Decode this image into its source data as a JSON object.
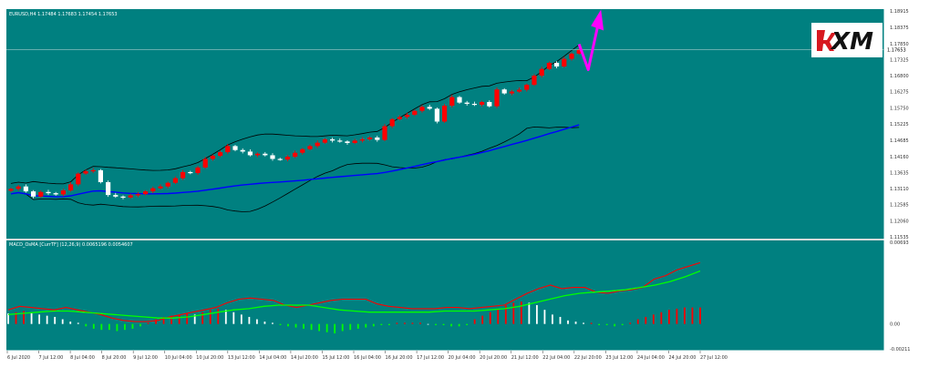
{
  "main_header": "EURUSD,H4  1.17484 1.17683 1.17454 1.17653",
  "macd_header": "MACD_OsMA [CurrTF] (12,26,9) 0.0065196 0.0054607",
  "logo": {
    "text": "XM",
    "brand_color": "#d71920"
  },
  "colors": {
    "background": "#008080",
    "bull_candle": "#ff0000",
    "bear_candle": "#ffffff",
    "bands": "#000000",
    "moving_average": "#0000ff",
    "forecast_arrow": "#ff00ff",
    "macd_line": "#ff0000",
    "signal_line": "#00ff00",
    "hist_rising": "#ff0000",
    "hist_falling": "#ffffff",
    "hist_negative": "#00ff00"
  },
  "current_price": "1.17653",
  "chart_data": [
    {
      "type": "candlestick",
      "symbol": "EURUSD",
      "timeframe": "H4",
      "ylim": [
        1.11535,
        1.18915
      ],
      "y_ticks": [
        "1.18915",
        "1.18375",
        "1.17850",
        "1.17325",
        "1.16800",
        "1.16275",
        "1.15750",
        "1.15225",
        "1.14685",
        "1.14160",
        "1.13635",
        "1.13110",
        "1.12585",
        "1.12060",
        "1.11535"
      ],
      "x_ticks": [
        "6 Jul 2020",
        "7 Jul 12:00",
        "8 Jul 04:00",
        "8 Jul 20:00",
        "9 Jul 12:00",
        "10 Jul 04:00",
        "10 Jul 20:00",
        "13 Jul 12:00",
        "14 Jul 04:00",
        "14 Jul 20:00",
        "15 Jul 12:00",
        "16 Jul 04:00",
        "16 Jul 20:00",
        "17 Jul 12:00",
        "20 Jul 04:00",
        "20 Jul 20:00",
        "21 Jul 12:00",
        "22 Jul 04:00",
        "22 Jul 20:00",
        "23 Jul 12:00",
        "24 Jul 04:00",
        "24 Jul 20:00",
        "27 Jul 12:00"
      ],
      "close": [
        1.131,
        1.1318,
        1.1302,
        1.1285,
        1.13,
        1.1296,
        1.1292,
        1.1305,
        1.1325,
        1.136,
        1.1368,
        1.1371,
        1.1332,
        1.129,
        1.1285,
        1.1282,
        1.1289,
        1.1293,
        1.1302,
        1.1312,
        1.1318,
        1.133,
        1.1345,
        1.1365,
        1.1362,
        1.138,
        1.1408,
        1.1418,
        1.143,
        1.145,
        1.1437,
        1.1432,
        1.142,
        1.1425,
        1.142,
        1.1408,
        1.1406,
        1.1415,
        1.1428,
        1.144,
        1.145,
        1.1461,
        1.1472,
        1.1468,
        1.1465,
        1.146,
        1.1468,
        1.1472,
        1.1478,
        1.147,
        1.1515,
        1.1538,
        1.1545,
        1.1552,
        1.1565,
        1.1578,
        1.1572,
        1.153,
        1.1582,
        1.161,
        1.1592,
        1.1588,
        1.1585,
        1.1594,
        1.158,
        1.1635,
        1.1622,
        1.1628,
        1.1634,
        1.165,
        1.168,
        1.1702,
        1.1722,
        1.171,
        1.1735,
        1.1752,
        1.1765
      ],
      "overlays": [
        "upper band",
        "lower band",
        "moving average"
      ],
      "forecast": "upward arrow"
    },
    {
      "type": "bar",
      "name": "MACD_OsMA",
      "ylim": [
        -0.00211,
        0.00693
      ],
      "y_ticks": [
        "0.00693",
        "0.00",
        "-0.00211"
      ],
      "histogram": [
        0.0009,
        0.001,
        0.0011,
        0.0009,
        0.0008,
        0.0007,
        0.0006,
        0.0004,
        0.0002,
        0.0001,
        -0.0002,
        -0.0004,
        -0.0005,
        -0.0005,
        -0.0006,
        -0.0005,
        -0.0004,
        -0.0002,
        0.0001,
        0.0004,
        0.0006,
        0.0007,
        0.0008,
        0.0009,
        0.0008,
        0.001,
        0.0012,
        0.0013,
        0.0012,
        0.001,
        0.0008,
        0.0006,
        0.0004,
        0.0002,
        0.0001,
        -0.0001,
        -0.0002,
        -0.0003,
        -0.0004,
        -0.0005,
        -0.0006,
        -0.0007,
        -0.0008,
        -0.0006,
        -0.0005,
        -0.0004,
        -0.0003,
        -0.0002,
        -0.0001,
        -0.0001,
        0.0001,
        0.0001,
        0.0001,
        0.0001,
        0.0,
        -0.0001,
        -0.0001,
        -0.0002,
        -0.0002,
        -0.0001,
        0.0004,
        0.0007,
        0.001,
        0.0013,
        0.0016,
        0.0018,
        0.0019,
        0.0018,
        0.0016,
        0.0012,
        0.0008,
        0.0006,
        0.0003,
        0.0002,
        0.0001,
        0.0001,
        -0.0001,
        -0.0001,
        -0.0002,
        -0.0001,
        0.0001,
        0.0004,
        0.0006,
        0.0008,
        0.001,
        0.0012,
        0.0013,
        0.0014,
        0.0014,
        0.0014
      ],
      "macd_line": [
        0.0012,
        0.0015,
        0.0014,
        0.0013,
        0.0012,
        0.0014,
        0.0012,
        0.001,
        0.0008,
        0.0005,
        0.0003,
        0.0002,
        0.0002,
        0.0003,
        0.0006,
        0.0008,
        0.001,
        0.0012,
        0.0014,
        0.0018,
        0.0021,
        0.0022,
        0.0021,
        0.002,
        0.0016,
        0.0014,
        0.0016,
        0.0018,
        0.002,
        0.0021,
        0.0021,
        0.0021,
        0.0017,
        0.0015,
        0.0014,
        0.0013,
        0.0013,
        0.0013,
        0.0014,
        0.0014,
        0.0013,
        0.0014,
        0.0015,
        0.0016,
        0.0021,
        0.0026,
        0.003,
        0.0033,
        0.003,
        0.0031,
        0.0031,
        0.0027,
        0.0026,
        0.0028,
        0.0029,
        0.0031,
        0.0038,
        0.0041,
        0.0046,
        0.0049,
        0.0052
      ],
      "signal_line": [
        0.0008,
        0.0009,
        0.001,
        0.0011,
        0.0011,
        0.001,
        0.0009,
        0.0008,
        0.0007,
        0.0006,
        0.0005,
        0.0005,
        0.0006,
        0.0008,
        0.001,
        0.0012,
        0.0013,
        0.0015,
        0.0016,
        0.0016,
        0.0016,
        0.0014,
        0.0012,
        0.0011,
        0.001,
        0.001,
        0.001,
        0.001,
        0.001,
        0.0011,
        0.0011,
        0.0011,
        0.0012,
        0.0013,
        0.0015,
        0.0018,
        0.0021,
        0.0024,
        0.0026,
        0.0027,
        0.0028,
        0.0029,
        0.0031,
        0.0033,
        0.0036,
        0.004,
        0.0045
      ]
    }
  ]
}
